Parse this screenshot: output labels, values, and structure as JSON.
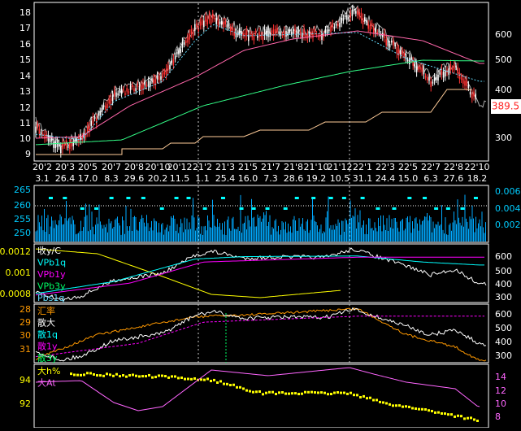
{
  "x_axis": {
    "row1": [
      "20'2",
      "20'3",
      "20'5",
      "20'7",
      "20'8",
      "20'10",
      "20'12",
      "21'2",
      "21'3",
      "21'5",
      "21'7",
      "21'8",
      "21'10",
      "21'12",
      "22'1",
      "22'3",
      "22'5",
      "22'7",
      "22'8",
      "22'10"
    ],
    "row2": [
      "3.1",
      "26.4",
      "17.0",
      "8.3",
      "29.6",
      "20.2",
      "11.5",
      "1.1",
      "25.4",
      "16.0",
      "7.3",
      "28.6",
      "19.2",
      "10.5",
      "31.1",
      "24.4",
      "15.0",
      "6.3",
      "27.6",
      "18.2"
    ]
  },
  "price_tag": "389.5",
  "panels": [
    {
      "left_ticks": [
        "18",
        "17",
        "16",
        "15",
        "14",
        "13",
        "12",
        "11",
        "10",
        "9"
      ],
      "left_color": "#ffffff",
      "right_ticks": [
        "600",
        "500",
        "400",
        "300"
      ],
      "right_color": "#ffffff",
      "legend": []
    },
    {
      "left_ticks": [
        "265",
        "260",
        "255",
        "250"
      ],
      "left_color": "#00ccff",
      "right_ticks": [
        "0.006",
        "0.004",
        "0.002"
      ],
      "right_color": "#00ccff",
      "legend": []
    },
    {
      "left_ticks": [
        "0.0012",
        "0.001",
        "0.0008"
      ],
      "left_color": "#ffff00",
      "right_ticks": [
        "600",
        "500",
        "400",
        "300"
      ],
      "right_color": "#ffffff",
      "legend": [
        {
          "text": "收y/C",
          "color": "#ffffff"
        },
        {
          "text": "VPb1q",
          "color": "#00ffff"
        },
        {
          "text": "VPb1y",
          "color": "#ff00ff"
        },
        {
          "text": "VPb3y",
          "color": "#00ff66"
        },
        {
          "text": "Pbs1q",
          "color": "#66ddff"
        }
      ]
    },
    {
      "left_ticks": [
        "28",
        "29",
        "30",
        "31"
      ],
      "left_color": "#ff9900",
      "right_ticks": [
        "600",
        "500",
        "400",
        "300"
      ],
      "right_color": "#ffffff",
      "legend": [
        {
          "text": "汇率",
          "color": "#ff9900"
        },
        {
          "text": "散大",
          "color": "#ffffff"
        },
        {
          "text": "散1q",
          "color": "#00ffff"
        },
        {
          "text": "散1y",
          "color": "#ff00ff"
        },
        {
          "text": "散3y",
          "color": "#00ff66"
        }
      ]
    },
    {
      "left_ticks": [
        "94",
        "92"
      ],
      "left_color": "#ffff00",
      "right_ticks": [
        "14",
        "12",
        "10",
        "8"
      ],
      "right_color": "#ff66ff",
      "legend": [
        {
          "text": "大h%",
          "color": "#ffff00"
        },
        {
          "text": "大At",
          "color": "#ff66ff"
        }
      ]
    }
  ]
}
